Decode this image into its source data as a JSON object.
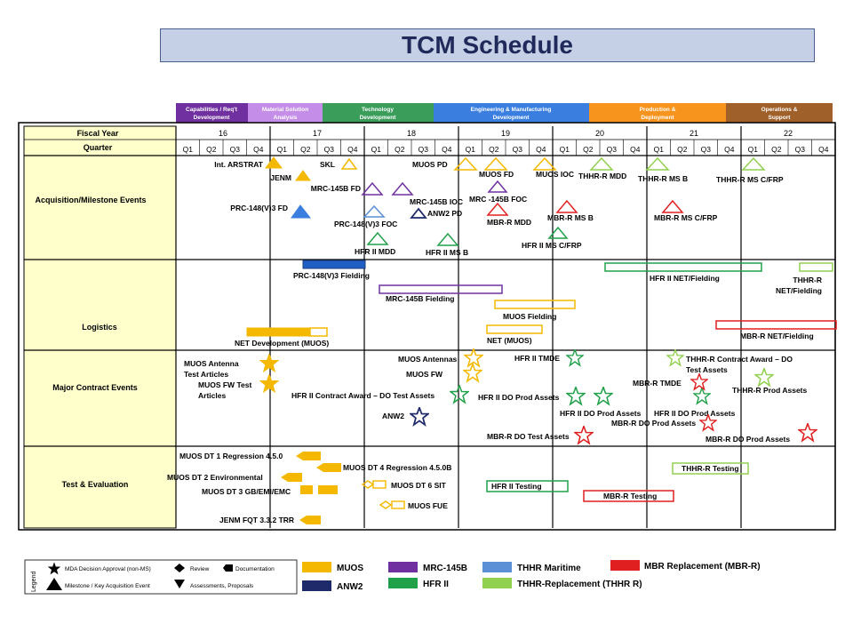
{
  "title": "TCM Schedule",
  "phases": [
    {
      "label": "Capabilities / Req't Development",
      "color": "#7030a0"
    },
    {
      "label": "Material Solution Analysis",
      "color": "#c48ee8"
    },
    {
      "label": "Technology Development",
      "color": "#3a9d5a"
    },
    {
      "label": "Engineering & Manufacturing Development",
      "color": "#3a7fe0"
    },
    {
      "label": "Production & Deployment",
      "color": "#f7941d"
    },
    {
      "label": "Operations & Support",
      "color": "#a0602a"
    }
  ],
  "header": {
    "fiscal_year_label": "Fiscal Year",
    "quarter_label": "Quarter"
  },
  "years": [
    "16",
    "17",
    "18",
    "19",
    "20",
    "21",
    "22"
  ],
  "quarters": [
    "Q1",
    "Q2",
    "Q3",
    "Q4"
  ],
  "rows": [
    {
      "label": "Acquisition/Milestone Events"
    },
    {
      "label": "Logistics"
    },
    {
      "label": "Major Contract Events"
    },
    {
      "label": "Test & Evaluation"
    }
  ],
  "colors": {
    "muos": "#f5b800",
    "mrc": "#7030a0",
    "thhr_maritime": "#5b8fd6",
    "mbr": "#e02020",
    "anw2": "#1f2a6a",
    "hfr": "#21a04a",
    "thhrr": "#92d050"
  },
  "milestones": [
    {
      "label": "Int. ARSTRAT",
      "date": "FY16 Q4",
      "shape": "triangle",
      "color": "muos",
      "filled": true
    },
    {
      "label": "JENM",
      "date": "FY17 Q1",
      "shape": "triangle",
      "color": "muos",
      "filled": true
    },
    {
      "label": "SKL",
      "date": "FY17 Q3",
      "shape": "triangle",
      "color": "muos",
      "filled": false
    },
    {
      "label": "MRC-145B FD",
      "date": "FY17 Q4",
      "shape": "triangle",
      "color": "mrc",
      "filled": false
    },
    {
      "label": "MRC-145B IOC",
      "date": "FY18 Q1",
      "shape": "triangle",
      "color": "mrc",
      "filled": false
    },
    {
      "label": "PRC-148(V)3 FD",
      "date": "FY17 Q1",
      "shape": "triangle",
      "color": "thhr_maritime",
      "filled": true
    },
    {
      "label": "PRC-148(V)3 FOC",
      "date": "FY17 Q4",
      "shape": "triangle",
      "color": "thhr_maritime",
      "filled": false
    },
    {
      "label": "ANW2 PD",
      "date": "FY18 Q2",
      "shape": "triangle",
      "color": "anw2",
      "filled": false
    },
    {
      "label": "HFR II MDD",
      "date": "FY17 Q4",
      "shape": "triangle",
      "color": "hfr",
      "filled": false
    },
    {
      "label": "HFR II MS B",
      "date": "FY18 Q3",
      "shape": "triangle",
      "color": "hfr",
      "filled": false
    },
    {
      "label": "MUOS PD",
      "date": "FY18 Q4",
      "shape": "triangle",
      "color": "muos",
      "filled": false
    },
    {
      "label": "MUOS FD",
      "date": "FY19 Q1",
      "shape": "triangle",
      "color": "muos",
      "filled": false
    },
    {
      "label": "MUOS IOC",
      "date": "FY19 Q2",
      "shape": "triangle",
      "color": "muos",
      "filled": false
    },
    {
      "label": "MRC -145B FOC",
      "date": "FY19 Q1",
      "shape": "triangle",
      "color": "mrc",
      "filled": false
    },
    {
      "label": "MBR-R MDD",
      "date": "FY19 Q1",
      "shape": "triangle",
      "color": "mbr",
      "filled": false
    },
    {
      "label": "MBR-R MS B",
      "date": "FY19 Q4",
      "shape": "triangle",
      "color": "mbr",
      "filled": false
    },
    {
      "label": "HFR II MS C/FRP",
      "date": "FY19 Q4",
      "shape": "triangle",
      "color": "hfr",
      "filled": false
    },
    {
      "label": "THHR-R MDD",
      "date": "FY20 Q1",
      "shape": "triangle",
      "color": "thhrr",
      "filled": false
    },
    {
      "label": "THHR-R MS B",
      "date": "FY20 Q3",
      "shape": "triangle",
      "color": "thhrr",
      "filled": false
    },
    {
      "label": "MBR-R MS C/FRP",
      "date": "FY20 Q4",
      "shape": "triangle",
      "color": "mbr",
      "filled": false
    },
    {
      "label": "THHR-R MS C/FRP",
      "date": "FY22 Q1",
      "shape": "triangle",
      "color": "thhrr",
      "filled": false
    }
  ],
  "logistics": [
    {
      "label": "PRC-148(V)3 Fielding",
      "start": "FY17 Q1",
      "end": "FY17 Q3",
      "color": "thhr_maritime",
      "filled": true
    },
    {
      "label": "MRC-145B  Fielding",
      "start": "FY17 Q4",
      "end": "FY19 Q1",
      "color": "mrc",
      "filled": false
    },
    {
      "label": "MUOS Fielding",
      "start": "FY19 Q1",
      "end": "FY19 Q4",
      "color": "muos",
      "filled": false
    },
    {
      "label": "NET (MUOS)",
      "start": "FY19 Q1",
      "end": "FY19 Q2",
      "color": "muos",
      "filled": false
    },
    {
      "label": "NET Development (MUOS)",
      "start": "FY16 Q3",
      "end": "FY17 Q2",
      "color": "muos",
      "filled": true
    },
    {
      "label": "HFR II NET/Fielding",
      "start": "FY20 Q1",
      "end": "FY21 Q4",
      "color": "hfr",
      "filled": false
    },
    {
      "label": "THHR-R NET/Fielding",
      "start": "FY22 Q4",
      "end": "FY22 Q4",
      "color": "thhrr",
      "filled": false
    },
    {
      "label": "MBR-R NET/Fielding",
      "start": "FY21 Q2",
      "end": "FY22 Q4",
      "color": "mbr",
      "filled": false
    }
  ],
  "contracts": [
    {
      "label": "MUOS Antenna Test Articles",
      "date": "FY16 Q4",
      "color": "muos",
      "filled": true
    },
    {
      "label": "MUOS FW Test Articles",
      "date": "FY16 Q4",
      "color": "muos",
      "filled": true
    },
    {
      "label": "MUOS Antennas",
      "date": "FY18 Q4",
      "color": "muos",
      "filled": false
    },
    {
      "label": "MUOS FW",
      "date": "FY18 Q4",
      "color": "muos",
      "filled": false
    },
    {
      "label": "HFR II Contract Award – DO Test Assets",
      "date": "FY18 Q3",
      "color": "hfr",
      "filled": false
    },
    {
      "label": "ANW2",
      "date": "FY18 Q2",
      "color": "anw2",
      "filled": false
    },
    {
      "label": "HFR II TMDE",
      "date": "FY19 Q4",
      "color": "hfr",
      "filled": false
    },
    {
      "label": "HFR II DO Prod Assets",
      "date": "FY19 Q4",
      "color": "hfr",
      "filled": false
    },
    {
      "label": "HFR II DO Prod Assets",
      "date": "FY20 Q1",
      "color": "hfr",
      "filled": false
    },
    {
      "label": "HFR II DO Prod Assets",
      "date": "FY21 Q1",
      "color": "hfr",
      "filled": false
    },
    {
      "label": "MBR-R DO Test Assets",
      "date": "FY19 Q4",
      "color": "mbr",
      "filled": false
    },
    {
      "label": "THHR-R  Contract Award – DO Test Assets",
      "date": "FY21 Q1",
      "color": "thhrr",
      "filled": false
    },
    {
      "label": "MBR-R TMDE",
      "date": "FY21 Q1",
      "color": "mbr",
      "filled": false
    },
    {
      "label": "THHR-R Prod Assets",
      "date": "FY22 Q1",
      "color": "thhrr",
      "filled": false
    },
    {
      "label": "MBR-R DO Prod Assets",
      "date": "FY21 Q2",
      "color": "mbr",
      "filled": false
    },
    {
      "label": "MBR-R DO Prod Assets",
      "date": "FY22 Q4",
      "color": "mbr",
      "filled": false
    }
  ],
  "test_eval": [
    {
      "label": "MUOS DT 1 Regression 4.5.0",
      "date": "FY17 Q1",
      "shape": "documentation",
      "color": "muos"
    },
    {
      "label": "MUOS DT 4 Regression 4.5.0B",
      "date": "FY17 Q2",
      "shape": "documentation",
      "color": "muos"
    },
    {
      "label": "MUOS DT 2 Environmental",
      "date": "FY17 Q1",
      "shape": "documentation",
      "color": "muos"
    },
    {
      "label": "MUOS DT 3 GB/EMI/EMC",
      "date": "FY17 Q2",
      "shape": "bar",
      "color": "muos"
    },
    {
      "label": "MUOS DT 6 SIT",
      "date": "FY17 Q4",
      "shape": "review-bar",
      "color": "muos"
    },
    {
      "label": "MUOS FUE",
      "date": "FY18 Q1",
      "shape": "review-bar",
      "color": "muos"
    },
    {
      "label": "JENM FQT 3.3.2 TRR",
      "date": "FY17 Q1",
      "shape": "documentation",
      "color": "muos"
    },
    {
      "label": "HFR II Testing",
      "start": "FY18 Q4",
      "end": "FY19 Q3",
      "shape": "bar",
      "color": "hfr"
    },
    {
      "label": "MBR-R Testing",
      "start": "FY19 Q4",
      "end": "FY20 Q3",
      "shape": "bar",
      "color": "mbr"
    },
    {
      "label": "THHR-R  Testing",
      "start": "FY21 Q1",
      "end": "FY21 Q3",
      "shape": "bar",
      "color": "thhrr"
    }
  ],
  "legend": {
    "title": "Legend",
    "symbols": [
      {
        "icon": "star-icon",
        "label": "MDA Decision Approval (non-MS)"
      },
      {
        "icon": "diamond-icon",
        "label": "Review"
      },
      {
        "icon": "documentation-icon",
        "label": "Documentation"
      },
      {
        "icon": "triangle-up-icon",
        "label": "Milestone / Key Acquisition Event"
      },
      {
        "icon": "triangle-down-icon",
        "label": "Assessments, Proposals"
      }
    ],
    "programs": [
      {
        "label": "MUOS",
        "color": "#f5b800"
      },
      {
        "label": "MRC-145B",
        "color": "#7030a0"
      },
      {
        "label": "THHR Maritime",
        "color": "#5b8fd6"
      },
      {
        "label": "MBR Replacement (MBR-R)",
        "color": "#e02020"
      },
      {
        "label": "ANW2",
        "color": "#1f2a6a"
      },
      {
        "label": "HFR II",
        "color": "#21a04a"
      },
      {
        "label": "THHR-Replacement (THHR R)",
        "color": "#92d050"
      }
    ]
  }
}
